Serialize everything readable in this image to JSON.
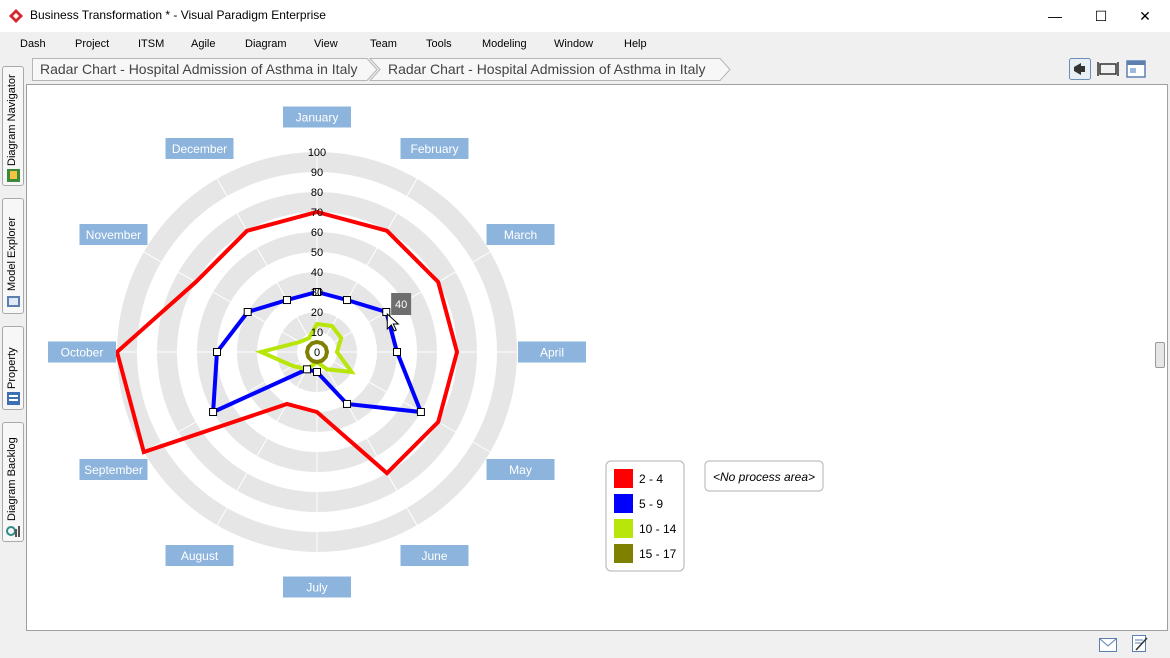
{
  "window": {
    "title": "Business Transformation * - Visual Paradigm Enterprise",
    "minimize_glyph": "—",
    "maximize_glyph": "☐",
    "close_glyph": "✕"
  },
  "menu": {
    "items": [
      "Dash",
      "Project",
      "ITSM",
      "Agile",
      "Diagram",
      "View",
      "Team",
      "Tools",
      "Modeling",
      "Window",
      "Help"
    ]
  },
  "sidebar": {
    "tabs": [
      {
        "label": "Diagram Navigator",
        "icon": "diagram-navigator-icon"
      },
      {
        "label": "Model Explorer",
        "icon": "model-explorer-icon"
      },
      {
        "label": "Property",
        "icon": "property-icon"
      },
      {
        "label": "Diagram Backlog",
        "icon": "diagram-backlog-icon"
      }
    ]
  },
  "breadcrumb": {
    "items": [
      "Radar Chart - Hospital Admission of Asthma in Italy",
      "Radar Chart - Hospital Admission of Asthma in Italy"
    ]
  },
  "colors": {
    "label_box": "#8db4dc",
    "grid_band": "#e6e6e6",
    "series_2_4": "#ff0000",
    "series_5_9": "#0000ff",
    "series_10_14": "#b8e60a",
    "series_15_17": "#7f7f00"
  },
  "chart_data": {
    "type": "radar",
    "categories": [
      "January",
      "February",
      "March",
      "April",
      "May",
      "June",
      "July",
      "August",
      "September",
      "October",
      "November",
      "December"
    ],
    "axis_ticks": [
      "0",
      "10",
      "20",
      "30",
      "40",
      "50",
      "60",
      "70",
      "80",
      "90",
      "100"
    ],
    "rlim": [
      0,
      100
    ],
    "series": [
      {
        "name": "2 - 4",
        "values": [
          70,
          70,
          70,
          70,
          70,
          70,
          30,
          30,
          100,
          100,
          70,
          70
        ]
      },
      {
        "name": "5 - 9",
        "values": [
          30,
          30,
          40,
          40,
          60,
          30,
          10,
          10,
          60,
          50,
          40,
          30
        ]
      },
      {
        "name": "10 - 14",
        "values": [
          14,
          15,
          14,
          10,
          20,
          10,
          5,
          10,
          14,
          28,
          10,
          8
        ]
      },
      {
        "name": "15 - 17",
        "values": [
          5,
          5,
          5,
          5,
          5,
          5,
          5,
          5,
          5,
          5,
          5,
          5
        ]
      }
    ],
    "tooltip": "40",
    "legend_position": "bottom-right"
  },
  "process_area": "<No process area>"
}
